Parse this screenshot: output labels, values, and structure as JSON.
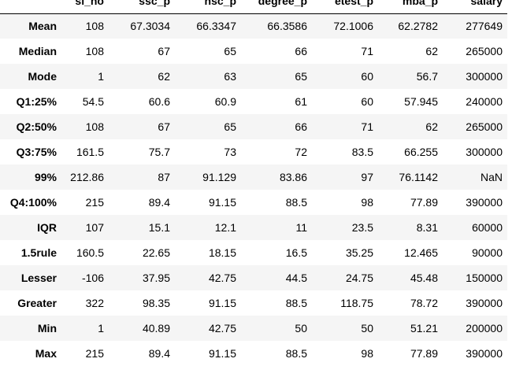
{
  "table": {
    "index_header": "",
    "columns": [
      "sl_no",
      "ssc_p",
      "hsc_p",
      "degree_p",
      "etest_p",
      "mba_p",
      "salary"
    ],
    "rows": [
      {
        "label": "Mean",
        "cells": [
          "108",
          "67.3034",
          "66.3347",
          "66.3586",
          "72.1006",
          "62.2782",
          "277649"
        ]
      },
      {
        "label": "Median",
        "cells": [
          "108",
          "67",
          "65",
          "66",
          "71",
          "62",
          "265000"
        ]
      },
      {
        "label": "Mode",
        "cells": [
          "1",
          "62",
          "63",
          "65",
          "60",
          "56.7",
          "300000"
        ]
      },
      {
        "label": "Q1:25%",
        "cells": [
          "54.5",
          "60.6",
          "60.9",
          "61",
          "60",
          "57.945",
          "240000"
        ]
      },
      {
        "label": "Q2:50%",
        "cells": [
          "108",
          "67",
          "65",
          "66",
          "71",
          "62",
          "265000"
        ]
      },
      {
        "label": "Q3:75%",
        "cells": [
          "161.5",
          "75.7",
          "73",
          "72",
          "83.5",
          "66.255",
          "300000"
        ]
      },
      {
        "label": "99%",
        "cells": [
          "212.86",
          "87",
          "91.129",
          "83.86",
          "97",
          "76.1142",
          "NaN"
        ]
      },
      {
        "label": "Q4:100%",
        "cells": [
          "215",
          "89.4",
          "91.15",
          "88.5",
          "98",
          "77.89",
          "390000"
        ]
      },
      {
        "label": "IQR",
        "cells": [
          "107",
          "15.1",
          "12.1",
          "11",
          "23.5",
          "8.31",
          "60000"
        ]
      },
      {
        "label": "1.5rule",
        "cells": [
          "160.5",
          "22.65",
          "18.15",
          "16.5",
          "35.25",
          "12.465",
          "90000"
        ]
      },
      {
        "label": "Lesser",
        "cells": [
          "-106",
          "37.95",
          "42.75",
          "44.5",
          "24.75",
          "45.48",
          "150000"
        ]
      },
      {
        "label": "Greater",
        "cells": [
          "322",
          "98.35",
          "91.15",
          "88.5",
          "118.75",
          "78.72",
          "390000"
        ]
      },
      {
        "label": "Min",
        "cells": [
          "1",
          "40.89",
          "42.75",
          "50",
          "50",
          "51.21",
          "200000"
        ]
      },
      {
        "label": "Max",
        "cells": [
          "215",
          "89.4",
          "91.15",
          "88.5",
          "98",
          "77.89",
          "390000"
        ]
      }
    ]
  }
}
